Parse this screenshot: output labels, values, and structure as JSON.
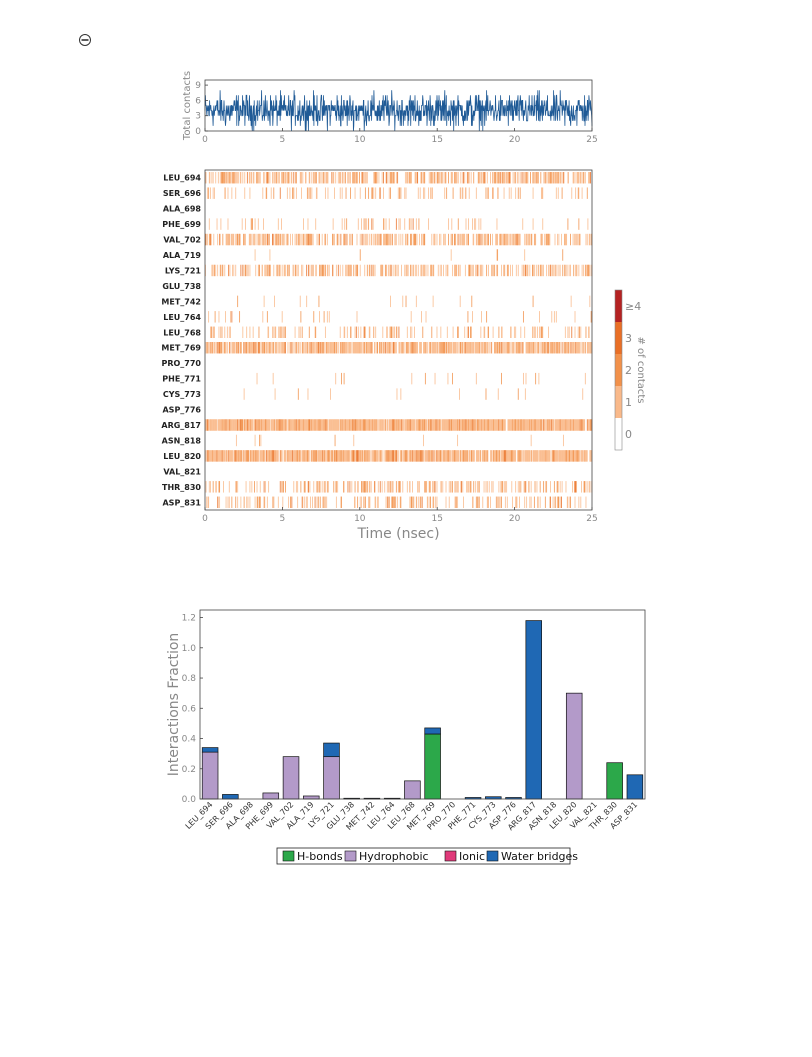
{
  "page": {
    "corner_symbol": "corner-circle-icon"
  },
  "chart_data": [
    {
      "type": "line",
      "ylabel": "Total contacts",
      "xlim": [
        0,
        25
      ],
      "ylim": [
        0,
        10
      ],
      "xticks": [
        "0",
        "5",
        "10",
        "15",
        "20",
        "25"
      ],
      "yticks": [
        "0",
        "3",
        "6",
        "9"
      ],
      "series": [
        {
          "color": "#1f5a96",
          "mean": 4,
          "min": 0,
          "max": 9,
          "samples": 1000,
          "x_range": [
            0,
            25
          ]
        }
      ]
    },
    {
      "type": "heatmap",
      "xlabel": "Time (nsec)",
      "xlim": [
        0,
        25
      ],
      "xticks": [
        "0",
        "5",
        "10",
        "15",
        "20",
        "25"
      ],
      "rows": [
        {
          "label": "LEU_694",
          "density": 0.5
        },
        {
          "label": "SER_696",
          "density": 0.15
        },
        {
          "label": "ALA_698",
          "density": 0.0
        },
        {
          "label": "PHE_699",
          "density": 0.1
        },
        {
          "label": "VAL_702",
          "density": 0.45
        },
        {
          "label": "ALA_719",
          "density": 0.02
        },
        {
          "label": "LYS_721",
          "density": 0.45
        },
        {
          "label": "GLU_738",
          "density": 0.0
        },
        {
          "label": "MET_742",
          "density": 0.02
        },
        {
          "label": "LEU_764",
          "density": 0.05
        },
        {
          "label": "LEU_768",
          "density": 0.2
        },
        {
          "label": "MET_769",
          "density": 0.75
        },
        {
          "label": "PRO_770",
          "density": 0.0
        },
        {
          "label": "PHE_771",
          "density": 0.02
        },
        {
          "label": "CYS_773",
          "density": 0.02
        },
        {
          "label": "ASP_776",
          "density": 0.0
        },
        {
          "label": "ARG_817",
          "density": 0.95
        },
        {
          "label": "ASN_818",
          "density": 0.02
        },
        {
          "label": "LEU_820",
          "density": 0.85
        },
        {
          "label": "VAL_821",
          "density": 0.0
        },
        {
          "label": "THR_830",
          "density": 0.35
        },
        {
          "label": "ASP_831",
          "density": 0.25
        }
      ],
      "colorbar": {
        "label": "# of contacts",
        "ticks": [
          "0",
          "1",
          "2",
          "3",
          "≥4"
        ],
        "colors": [
          "#ffffff",
          "#f9b98a",
          "#f2914a",
          "#e96f26",
          "#b52222"
        ]
      }
    },
    {
      "type": "bar",
      "stacked": true,
      "ylabel": "Interactions Fraction",
      "ylim": [
        0,
        1.25
      ],
      "yticks": [
        "0.0",
        "0.2",
        "0.4",
        "0.6",
        "0.8",
        "1.0",
        "1.2"
      ],
      "categories": [
        "LEU_694",
        "SER_696",
        "ALA_698",
        "PHE_699",
        "VAL_702",
        "ALA_719",
        "LYS_721",
        "GLU_738",
        "MET_742",
        "LEU_764",
        "LEU_768",
        "MET_769",
        "PRO_770",
        "PHE_771",
        "CYS_773",
        "ASP_776",
        "ARG_817",
        "ASN_818",
        "LEU_820",
        "VAL_821",
        "THR_830",
        "ASP_831"
      ],
      "series": [
        {
          "name": "H-bonds",
          "color": "#2ca84a",
          "values": [
            0,
            0,
            0,
            0,
            0,
            0,
            0,
            0,
            0,
            0,
            0,
            0.43,
            0,
            0,
            0,
            0,
            0,
            0,
            0,
            0,
            0.24,
            0
          ]
        },
        {
          "name": "Hydrophobic",
          "color": "#b39ac9",
          "values": [
            0.31,
            0,
            0,
            0.04,
            0.28,
            0.02,
            0.28,
            0,
            0,
            0,
            0.12,
            0,
            0,
            0,
            0,
            0,
            0,
            0,
            0.7,
            0,
            0,
            0
          ]
        },
        {
          "name": "Ionic",
          "color": "#e03a7a",
          "values": [
            0,
            0,
            0,
            0,
            0,
            0,
            0,
            0,
            0,
            0,
            0,
            0,
            0,
            0,
            0,
            0,
            0,
            0,
            0,
            0,
            0,
            0
          ]
        },
        {
          "name": "Water bridges",
          "color": "#1f68b4",
          "values": [
            0.03,
            0.03,
            0,
            0,
            0,
            0,
            0.09,
            0.005,
            0.005,
            0.005,
            0,
            0.04,
            0,
            0.01,
            0.015,
            0.01,
            1.18,
            0,
            0,
            0,
            0,
            0.16
          ]
        }
      ],
      "legend_position": "bottom"
    }
  ]
}
